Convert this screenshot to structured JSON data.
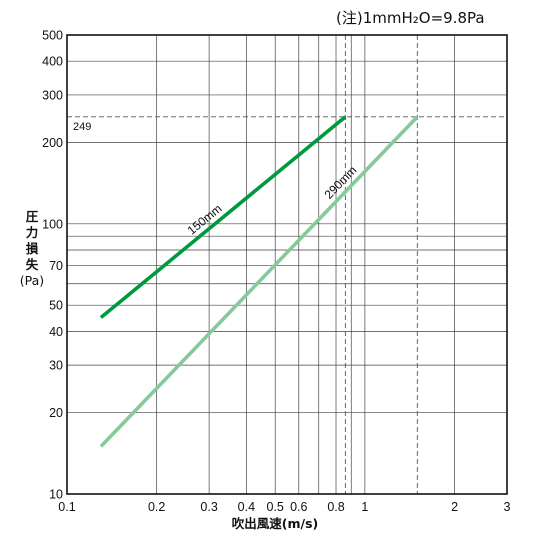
{
  "chart_data": {
    "type": "line",
    "title": "",
    "note": "(注)1mmH₂O=9.8Pa",
    "xlabel": "吹出風速(m/s)",
    "ylabel_lines": [
      "圧",
      "力",
      "損",
      "失",
      "(Pa)"
    ],
    "x_scale": "log",
    "y_scale": "log",
    "xlim": [
      0.1,
      3
    ],
    "ylim": [
      10,
      500
    ],
    "x_ticks": [
      {
        "value": 0.1,
        "label": "0.1"
      },
      {
        "value": 0.2,
        "label": "0.2"
      },
      {
        "value": 0.3,
        "label": "0.3"
      },
      {
        "value": 0.4,
        "label": "0.4"
      },
      {
        "value": 0.5,
        "label": "0.5"
      },
      {
        "value": 0.6,
        "label": "0.6"
      },
      {
        "value": 0.8,
        "label": "0.8"
      },
      {
        "value": 1,
        "label": "1"
      },
      {
        "value": 2,
        "label": "2"
      },
      {
        "value": 3,
        "label": "3"
      }
    ],
    "y_ticks": [
      {
        "value": 10,
        "label": "10"
      },
      {
        "value": 20,
        "label": "20"
      },
      {
        "value": 30,
        "label": "30"
      },
      {
        "value": 40,
        "label": "40"
      },
      {
        "value": 50,
        "label": "50"
      },
      {
        "value": 70,
        "label": "70"
      },
      {
        "value": 100,
        "label": "100"
      },
      {
        "value": 200,
        "label": "200"
      },
      {
        "value": 300,
        "label": "300"
      },
      {
        "value": 400,
        "label": "400"
      },
      {
        "value": 500,
        "label": "500"
      }
    ],
    "x_gridlines": [
      0.1,
      0.2,
      0.3,
      0.4,
      0.5,
      0.6,
      0.7,
      0.8,
      0.9,
      1,
      2,
      3
    ],
    "y_gridlines": [
      10,
      20,
      30,
      40,
      50,
      60,
      70,
      80,
      90,
      100,
      200,
      300,
      400,
      500
    ],
    "reference_lines": {
      "y": {
        "value": 249,
        "label": "249"
      },
      "x": [
        0.86,
        1.5
      ]
    },
    "series": [
      {
        "name": "150mm",
        "color": "#009a3e",
        "x": [
          0.13,
          0.86
        ],
        "y": [
          45,
          249
        ],
        "label_at": 0.45
      },
      {
        "name": "290mm",
        "color": "#86c99a",
        "x": [
          0.13,
          1.5
        ],
        "y": [
          15,
          249
        ],
        "label_at": 0.78
      }
    ],
    "grid": true,
    "legend": "none"
  }
}
